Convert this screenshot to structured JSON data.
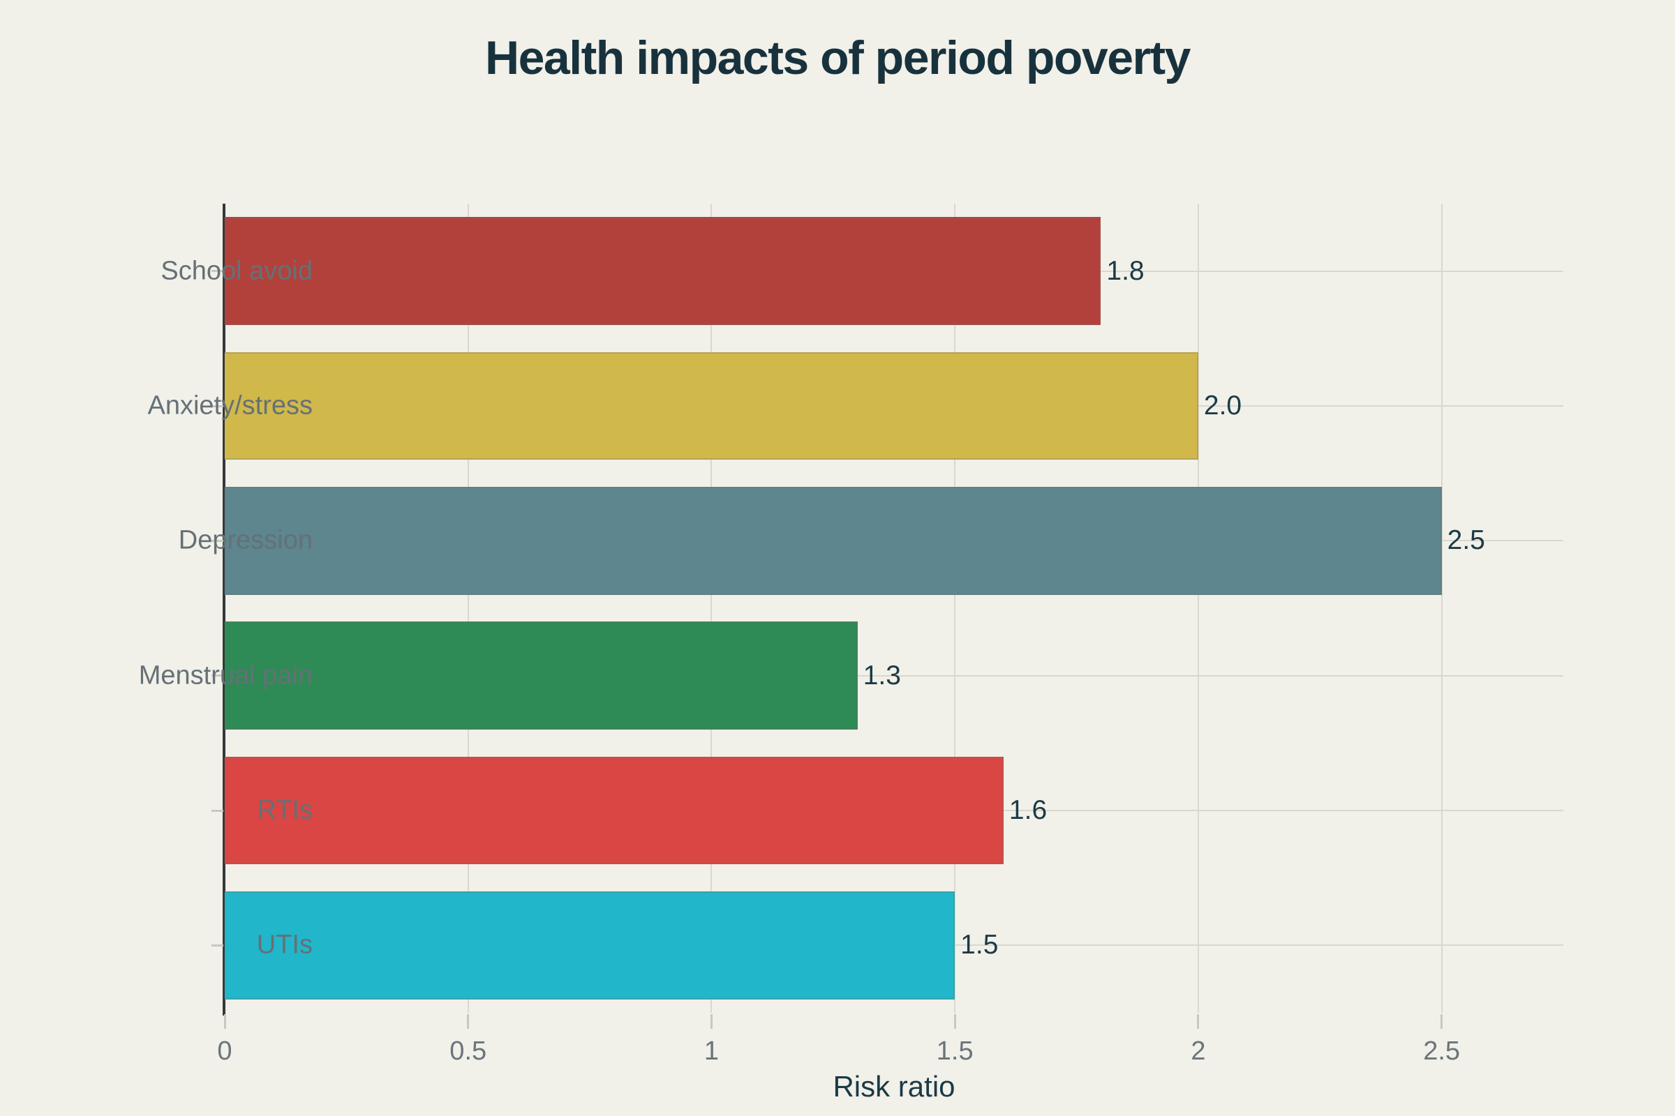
{
  "page": {
    "background_color": "#f1f0e9"
  },
  "chart_data": {
    "type": "bar",
    "orientation": "horizontal",
    "title": "Health impacts of period poverty",
    "xlabel": "Risk ratio",
    "ylabel": "",
    "categories": [
      "School avoid",
      "Anxiety/stress",
      "Depression",
      "Menstrual pain",
      "RTIs",
      "UTIs"
    ],
    "values": [
      1.8,
      2.0,
      2.5,
      1.3,
      1.6,
      1.5
    ],
    "value_labels": [
      "1.8",
      "2.0",
      "2.5",
      "1.3",
      "1.6",
      "1.5"
    ],
    "bar_colors": [
      "#b2413c",
      "#d0b84b",
      "#5d868e",
      "#2f8b55",
      "#d94644",
      "#21b6c9"
    ],
    "xticks": [
      0,
      0.5,
      1,
      1.5,
      2,
      2.5
    ],
    "xtick_labels": [
      "0",
      "0.5",
      "1",
      "1.5",
      "2",
      "2.5"
    ],
    "xlim": [
      0,
      2.75
    ],
    "grid": true,
    "legend": "none",
    "colors": {
      "title": "#18323d",
      "tick_label": "#6b747a",
      "category_label": "#657077",
      "value_label": "#1b3a45",
      "gridline": "#d9d7d0",
      "spine": "#35383a"
    }
  }
}
